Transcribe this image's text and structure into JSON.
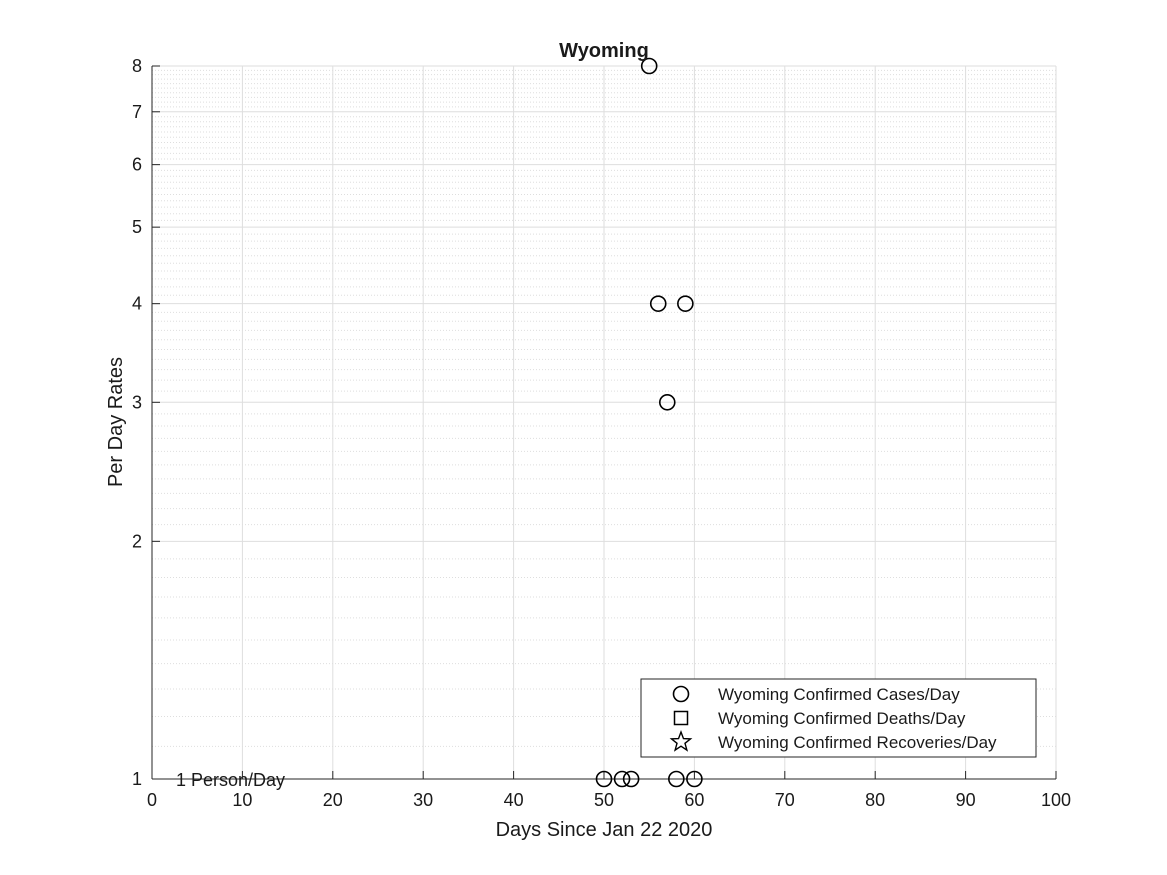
{
  "chart_data": {
    "type": "scatter",
    "title": "Wyoming",
    "xlabel": "Days Since Jan 22 2020",
    "ylabel": "Per Day Rates",
    "xlim": [
      0,
      100
    ],
    "ylim": [
      1,
      8
    ],
    "yscale": "log",
    "x_ticks": [
      0,
      10,
      20,
      30,
      40,
      50,
      60,
      70,
      80,
      90,
      100
    ],
    "y_ticks": [
      1,
      2,
      3,
      4,
      5,
      6,
      7,
      8
    ],
    "grid": true,
    "legend_position": "bottom-right",
    "annotation": "1 Person/Day",
    "series": [
      {
        "name": "Wyoming Confirmed Cases/Day",
        "marker": "circle",
        "points": [
          {
            "x": 50,
            "y": 1
          },
          {
            "x": 52,
            "y": 1
          },
          {
            "x": 53,
            "y": 1
          },
          {
            "x": 55,
            "y": 8
          },
          {
            "x": 56,
            "y": 4
          },
          {
            "x": 57,
            "y": 3
          },
          {
            "x": 58,
            "y": 1
          },
          {
            "x": 59,
            "y": 4
          },
          {
            "x": 60,
            "y": 1
          }
        ]
      },
      {
        "name": "Wyoming Confirmed Deaths/Day",
        "marker": "square",
        "points": []
      },
      {
        "name": "Wyoming Confirmed Recoveries/Day",
        "marker": "star",
        "points": []
      }
    ]
  },
  "colors": {
    "marker_stroke": "#000000",
    "grid": "#dedede",
    "axis": "#262626"
  }
}
